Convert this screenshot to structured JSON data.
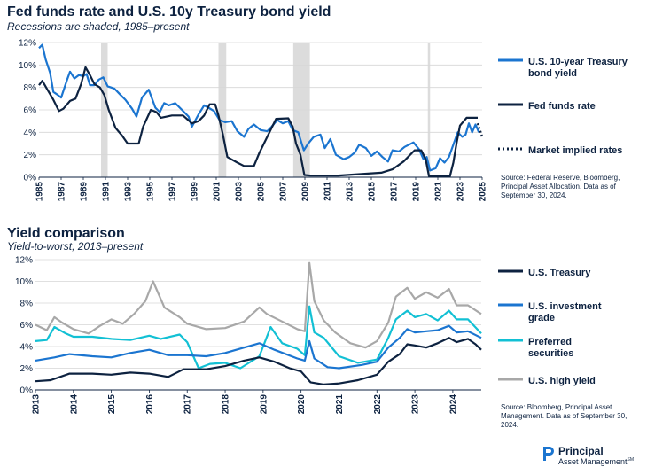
{
  "chart_data": [
    {
      "type": "line",
      "title": "Fed funds rate and U.S. 10y Treasury bond yield",
      "subtitle": "Recessions are shaded, 1985–present",
      "xlabel": "",
      "ylabel": "",
      "xlim": [
        1985,
        2025
      ],
      "ylim": [
        0,
        12
      ],
      "y_ticks": [
        "0%",
        "2%",
        "4%",
        "6%",
        "8%",
        "10%",
        "12%"
      ],
      "x_ticks": [
        "1985",
        "1987",
        "1989",
        "1991",
        "1993",
        "1995",
        "1997",
        "1999",
        "2001",
        "2003",
        "2005",
        "2007",
        "2009",
        "2011",
        "2013",
        "2015",
        "2017",
        "2019",
        "2021",
        "2023",
        "2025"
      ],
      "grid": "horizontal",
      "legend_position": "right",
      "recessions": [
        [
          1990.6,
          1991.2
        ],
        [
          2001.2,
          2001.9
        ],
        [
          2007.95,
          2009.45
        ],
        [
          2020.1,
          2020.3
        ]
      ],
      "series": [
        {
          "name": "U.S. 10-year Treasury bond yield",
          "color": "#1b75d0",
          "style": "solid",
          "x": [
            1985.0,
            1985.3,
            1985.6,
            1986.0,
            1986.3,
            1986.6,
            1987.0,
            1987.5,
            1987.8,
            1988.2,
            1988.6,
            1989.0,
            1989.3,
            1989.6,
            1990.0,
            1990.4,
            1990.8,
            1991.2,
            1991.8,
            1992.3,
            1992.8,
            1993.4,
            1993.8,
            1994.3,
            1994.9,
            1995.5,
            1995.9,
            1996.3,
            1996.7,
            1997.3,
            1997.9,
            1998.5,
            1998.8,
            1999.4,
            1999.9,
            2000.3,
            2000.8,
            2001.3,
            2001.8,
            2002.4,
            2002.9,
            2003.5,
            2003.9,
            2004.4,
            2005.0,
            2005.6,
            2006.0,
            2006.5,
            2007.0,
            2007.5,
            2007.9,
            2008.4,
            2008.9,
            2009.3,
            2009.8,
            2010.4,
            2010.8,
            2011.3,
            2011.8,
            2012.5,
            2013.0,
            2013.5,
            2013.9,
            2014.5,
            2015.0,
            2015.5,
            2016.0,
            2016.5,
            2016.9,
            2017.5,
            2018.0,
            2018.8,
            2019.3,
            2019.7,
            2020.0,
            2020.3,
            2020.8,
            2021.2,
            2021.6,
            2022.0,
            2022.4,
            2022.8,
            2023.2,
            2023.5,
            2023.8,
            2024.1,
            2024.4,
            2024.7
          ],
          "values": [
            11.5,
            11.8,
            10.5,
            9.3,
            7.6,
            7.4,
            7.1,
            8.6,
            9.4,
            8.8,
            9.1,
            9.0,
            9.2,
            8.2,
            8.2,
            8.7,
            8.9,
            8.1,
            7.9,
            7.4,
            6.9,
            6.1,
            5.4,
            7.1,
            7.8,
            6.2,
            5.8,
            6.6,
            6.4,
            6.6,
            6.0,
            5.4,
            4.5,
            5.6,
            6.4,
            6.2,
            5.9,
            5.1,
            4.9,
            5.0,
            4.1,
            3.6,
            4.3,
            4.7,
            4.2,
            4.1,
            4.5,
            5.1,
            4.8,
            5.0,
            4.2,
            4.0,
            2.4,
            3.0,
            3.6,
            3.8,
            2.6,
            3.4,
            2.0,
            1.6,
            1.8,
            2.2,
            2.9,
            2.6,
            1.9,
            2.3,
            1.8,
            1.4,
            2.4,
            2.3,
            2.7,
            3.1,
            2.5,
            1.6,
            1.8,
            0.6,
            0.8,
            1.7,
            1.3,
            1.8,
            2.9,
            4.0,
            3.6,
            3.8,
            4.8,
            4.0,
            4.7,
            4.0
          ]
        },
        {
          "name": "Fed funds rate",
          "color": "#0d2240",
          "style": "solid",
          "x": [
            1985.0,
            1985.3,
            1985.7,
            1986.3,
            1986.8,
            1987.2,
            1987.8,
            1988.3,
            1988.8,
            1989.2,
            1989.6,
            1990.0,
            1990.5,
            1990.9,
            1991.3,
            1991.9,
            1992.5,
            1993.0,
            1994.0,
            1994.4,
            1995.1,
            1995.6,
            1996.0,
            1997.0,
            1998.0,
            1998.8,
            1999.4,
            1999.9,
            2000.4,
            2000.9,
            2001.2,
            2001.6,
            2002.0,
            2002.9,
            2003.5,
            2004.4,
            2004.9,
            2006.4,
            2007.5,
            2007.9,
            2008.2,
            2008.6,
            2008.95,
            2009.5,
            2012.0,
            2015.9,
            2016.9,
            2017.9,
            2018.9,
            2019.5,
            2019.9,
            2020.2,
            2021.0,
            2022.1,
            2022.4,
            2022.7,
            2023.0,
            2023.6,
            2024.6
          ],
          "values": [
            8.2,
            8.6,
            7.9,
            6.9,
            5.9,
            6.1,
            6.8,
            7.0,
            8.3,
            9.8,
            9.1,
            8.3,
            8.0,
            7.3,
            6.0,
            4.4,
            3.7,
            3.0,
            3.0,
            4.5,
            6.0,
            5.8,
            5.3,
            5.5,
            5.5,
            4.8,
            5.0,
            5.5,
            6.5,
            6.5,
            5.5,
            3.8,
            1.8,
            1.3,
            1.0,
            1.0,
            2.2,
            5.2,
            5.25,
            4.5,
            3.0,
            2.0,
            0.2,
            0.15,
            0.15,
            0.4,
            0.7,
            1.4,
            2.4,
            2.4,
            1.6,
            0.1,
            0.1,
            0.1,
            1.3,
            3.1,
            4.6,
            5.3,
            5.3
          ]
        },
        {
          "name": "Market implied rates",
          "color": "#0d2240",
          "style": "dotted",
          "x": [
            2024.6,
            2024.8,
            2025.0
          ],
          "values": [
            4.8,
            4.2,
            3.6
          ]
        }
      ]
    },
    {
      "type": "line",
      "title": "Yield comparison",
      "subtitle": "Yield-to-worst, 2013–present",
      "xlabel": "",
      "ylabel": "",
      "xlim": [
        2013,
        2024.75
      ],
      "ylim": [
        0,
        12
      ],
      "y_ticks": [
        "0%",
        "2%",
        "4%",
        "6%",
        "8%",
        "10%",
        "12%"
      ],
      "x_ticks": [
        "2013",
        "2014",
        "2015",
        "2016",
        "2017",
        "2018",
        "2019",
        "2020",
        "2021",
        "2022",
        "2023",
        "2024"
      ],
      "grid": "horizontal",
      "legend_position": "right",
      "series": [
        {
          "name": "U.S. high yield",
          "color": "#a8a8a8",
          "x": [
            2013.0,
            2013.3,
            2013.5,
            2013.7,
            2014.0,
            2014.4,
            2014.7,
            2015.0,
            2015.3,
            2015.6,
            2015.9,
            2016.1,
            2016.4,
            2016.8,
            2017.0,
            2017.5,
            2018.0,
            2018.5,
            2018.9,
            2019.1,
            2019.5,
            2019.9,
            2020.1,
            2020.22,
            2020.35,
            2020.6,
            2020.9,
            2021.3,
            2021.7,
            2022.0,
            2022.3,
            2022.5,
            2022.8,
            2023.0,
            2023.3,
            2023.6,
            2023.9,
            2024.1,
            2024.4,
            2024.75
          ],
          "values": [
            6.0,
            5.5,
            6.7,
            6.2,
            5.6,
            5.2,
            5.9,
            6.5,
            6.1,
            7.0,
            8.2,
            10.0,
            7.6,
            6.7,
            6.1,
            5.6,
            5.7,
            6.3,
            7.6,
            7.0,
            6.3,
            5.6,
            5.4,
            11.7,
            8.2,
            6.4,
            5.3,
            4.3,
            3.9,
            4.5,
            6.2,
            8.6,
            9.4,
            8.4,
            9.0,
            8.5,
            9.3,
            7.8,
            7.8,
            7.0
          ]
        },
        {
          "name": "Preferred securities",
          "color": "#12c0d4",
          "x": [
            2013.0,
            2013.3,
            2013.5,
            2013.8,
            2014.0,
            2014.5,
            2015.0,
            2015.5,
            2016.0,
            2016.3,
            2016.8,
            2017.0,
            2017.3,
            2017.6,
            2018.0,
            2018.4,
            2018.9,
            2019.2,
            2019.5,
            2019.9,
            2020.1,
            2020.22,
            2020.35,
            2020.6,
            2021.0,
            2021.5,
            2022.0,
            2022.3,
            2022.5,
            2022.8,
            2023.0,
            2023.3,
            2023.6,
            2023.9,
            2024.1,
            2024.4,
            2024.75
          ],
          "values": [
            4.5,
            4.6,
            5.8,
            5.2,
            4.9,
            4.9,
            4.7,
            4.6,
            5.0,
            4.7,
            5.1,
            4.4,
            2.0,
            2.4,
            2.5,
            2.0,
            3.1,
            5.8,
            4.3,
            3.8,
            3.2,
            7.7,
            5.3,
            4.8,
            3.1,
            2.5,
            2.8,
            4.8,
            6.5,
            7.3,
            6.7,
            7.0,
            6.4,
            7.3,
            6.5,
            6.5,
            5.2
          ]
        },
        {
          "name": "U.S. investment grade",
          "color": "#1b75d0",
          "x": [
            2013.0,
            2013.5,
            2013.9,
            2014.5,
            2015.0,
            2015.5,
            2016.0,
            2016.5,
            2017.0,
            2017.5,
            2018.0,
            2018.5,
            2018.9,
            2019.3,
            2019.9,
            2020.1,
            2020.22,
            2020.35,
            2020.7,
            2021.0,
            2021.6,
            2022.0,
            2022.3,
            2022.6,
            2022.8,
            2023.0,
            2023.3,
            2023.6,
            2023.9,
            2024.1,
            2024.4,
            2024.75
          ],
          "values": [
            2.7,
            3.0,
            3.3,
            3.1,
            3.0,
            3.4,
            3.7,
            3.2,
            3.2,
            3.1,
            3.4,
            3.9,
            4.3,
            3.7,
            2.9,
            2.7,
            4.5,
            2.9,
            2.1,
            2.0,
            2.3,
            2.6,
            3.9,
            4.8,
            5.6,
            5.3,
            5.4,
            5.5,
            5.9,
            5.3,
            5.4,
            4.8
          ]
        },
        {
          "name": "U.S. Treasury",
          "color": "#0d2240",
          "x": [
            2013.0,
            2013.4,
            2013.9,
            2014.5,
            2015.0,
            2015.5,
            2016.0,
            2016.5,
            2016.9,
            2017.5,
            2018.0,
            2018.5,
            2018.9,
            2019.3,
            2019.7,
            2020.0,
            2020.25,
            2020.6,
            2021.0,
            2021.5,
            2022.0,
            2022.3,
            2022.6,
            2022.8,
            2023.0,
            2023.3,
            2023.6,
            2023.9,
            2024.1,
            2024.4,
            2024.6,
            2024.75
          ],
          "values": [
            0.8,
            0.9,
            1.5,
            1.5,
            1.4,
            1.6,
            1.5,
            1.2,
            1.9,
            1.9,
            2.2,
            2.7,
            3.0,
            2.6,
            2.0,
            1.7,
            0.7,
            0.5,
            0.6,
            0.9,
            1.4,
            2.6,
            3.3,
            4.2,
            4.1,
            3.9,
            4.3,
            4.8,
            4.4,
            4.7,
            4.2,
            3.7
          ]
        }
      ]
    }
  ],
  "chart1": {
    "title": "Fed funds rate and U.S. 10y Treasury bond yield",
    "subtitle": "Recessions are shaded, 1985–present",
    "legend": [
      {
        "label": "U.S. 10-year Treasury bond yield",
        "color": "#1b75d0",
        "style": "solid"
      },
      {
        "label": "Fed funds rate",
        "color": "#0d2240",
        "style": "solid"
      },
      {
        "label": "Market implied rates",
        "color": "#0d2240",
        "style": "dotted"
      }
    ],
    "source": "Source: Federal Reserve, Bloomberg, Principal Asset Allocation. Data as of September 30, 2024."
  },
  "chart2": {
    "title": "Yield comparison",
    "subtitle": "Yield-to-worst, 2013–present",
    "legend": [
      {
        "label": "U.S. Treasury",
        "color": "#0d2240"
      },
      {
        "label": "U.S. investment grade",
        "color": "#1b75d0"
      },
      {
        "label": "Preferred securities",
        "color": "#12c0d4"
      },
      {
        "label": "U.S. high yield",
        "color": "#a8a8a8"
      }
    ],
    "source": "Source: Bloomberg, Principal Asset Management. Data as of September 30, 2024."
  },
  "logo": {
    "name": "Principal",
    "sub": "Asset Management",
    "mark": "SM",
    "color": "#1b75d0"
  }
}
